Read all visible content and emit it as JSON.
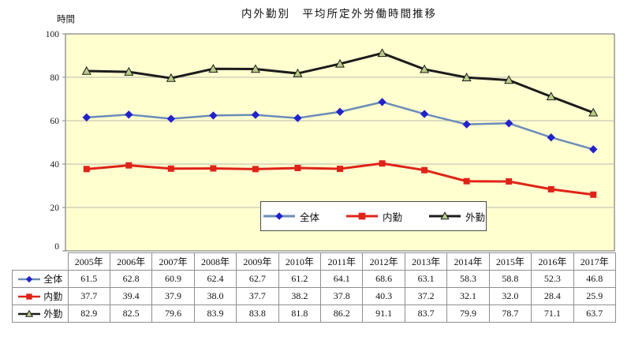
{
  "figure": {
    "title": "内外勤別　平均所定外労働時間推移",
    "y_unit_label": "時間"
  },
  "chart_data": {
    "type": "line",
    "title": "内外勤別　平均所定外労働時間推移",
    "xlabel": "",
    "ylabel": "時間",
    "ylim": [
      0,
      100
    ],
    "y_ticks": [
      0,
      20,
      40,
      60,
      80,
      100
    ],
    "grid": true,
    "plot_bg_color": "#ffffd0",
    "gridline_color": "#b8b8ae",
    "plot_border_color": "#808080",
    "legend_position": "inside-bottom-center",
    "has_data_table": true,
    "categories": [
      "2005年",
      "2006年",
      "2007年",
      "2008年",
      "2009年",
      "2010年",
      "2011年",
      "2012年",
      "2013年",
      "2014年",
      "2015年",
      "2016年",
      "2017年"
    ],
    "series": [
      {
        "key": "zentai",
        "name": "全体",
        "marker": "diamond",
        "line_color": "#6b8cb8",
        "line_width": 2.5,
        "marker_color": "#2222cc",
        "values": [
          61.5,
          62.8,
          60.9,
          62.4,
          62.7,
          61.2,
          64.1,
          68.6,
          63.1,
          58.3,
          58.8,
          52.3,
          46.8
        ],
        "display": [
          "61.5",
          "62.8",
          "60.9",
          "62.4",
          "62.7",
          "61.2",
          "64.1",
          "68.6",
          "63.1",
          "58.3",
          "58.8",
          "52.3",
          "46.8"
        ]
      },
      {
        "key": "naikin",
        "name": "内勤",
        "marker": "square",
        "line_color": "#e02318",
        "line_width": 3,
        "marker_color": "#e02318",
        "values": [
          37.7,
          39.4,
          37.9,
          38.0,
          37.7,
          38.2,
          37.8,
          40.3,
          37.2,
          32.1,
          32.0,
          28.4,
          25.9
        ],
        "display": [
          "37.7",
          "39.4",
          "37.9",
          "38.0",
          "37.7",
          "38.2",
          "37.8",
          "40.3",
          "37.2",
          "32.1",
          "32.0",
          "28.4",
          "25.9"
        ]
      },
      {
        "key": "gaikin",
        "name": "外勤",
        "marker": "triangle",
        "line_color": "#1c1c1c",
        "line_width": 3,
        "marker_color": "#b9cc85",
        "values": [
          82.9,
          82.5,
          79.6,
          83.9,
          83.8,
          81.8,
          86.2,
          91.1,
          83.7,
          79.9,
          78.7,
          71.1,
          63.7
        ],
        "display": [
          "82.9",
          "82.5",
          "79.6",
          "83.9",
          "83.8",
          "81.8",
          "86.2",
          "91.1",
          "83.7",
          "79.9",
          "78.7",
          "71.1",
          "63.7"
        ]
      }
    ]
  }
}
